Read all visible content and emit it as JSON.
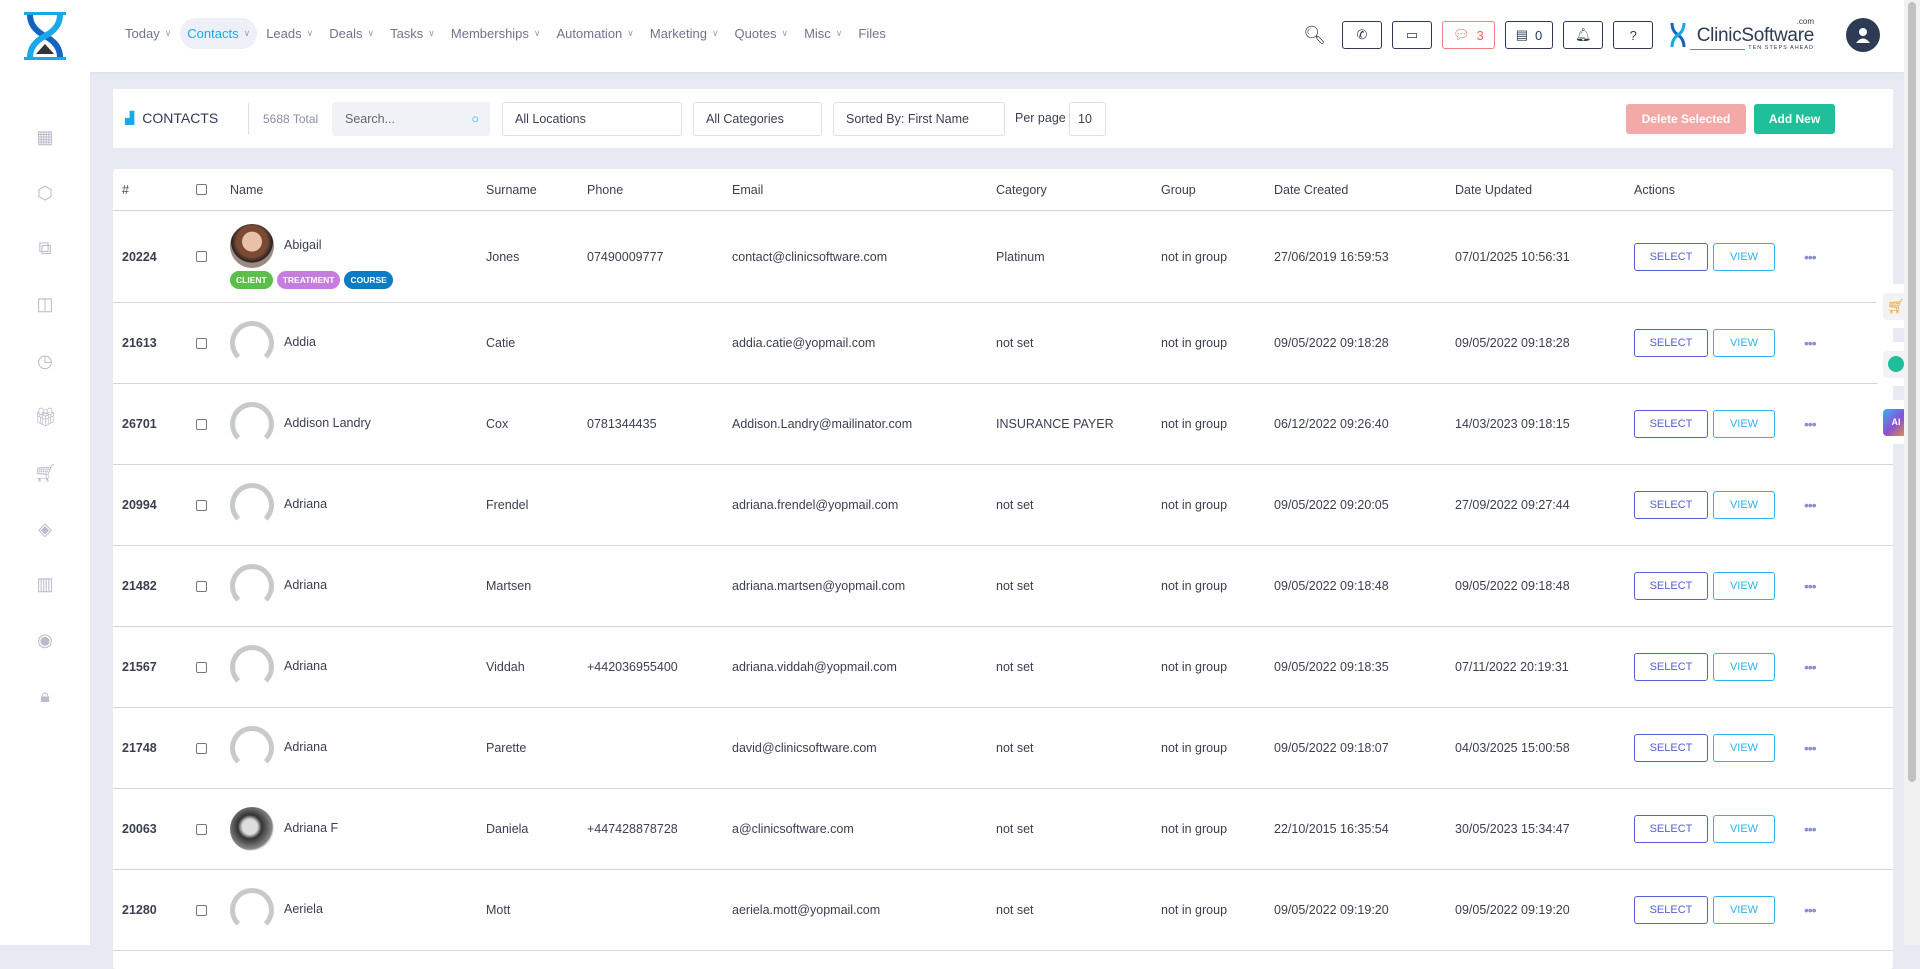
{
  "nav": [
    {
      "label": "Today"
    },
    {
      "label": "Contacts",
      "active": true
    },
    {
      "label": "Leads"
    },
    {
      "label": "Deals"
    },
    {
      "label": "Tasks"
    },
    {
      "label": "Memberships"
    },
    {
      "label": "Automation"
    },
    {
      "label": "Marketing"
    },
    {
      "label": "Quotes"
    },
    {
      "label": "Misc"
    },
    {
      "label": "Files",
      "nochev": true
    }
  ],
  "tools": {
    "chat_count": "3",
    "store_count": "0",
    "brand": "ClinicSoftware",
    "brand_suffix": ".com",
    "brand_tagline": "TEN STEPS AHEAD"
  },
  "toolbar": {
    "title": "CONTACTS",
    "total": "5688 Total",
    "search_placeholder": "Search...",
    "location": "All Locations",
    "category": "All Categories",
    "sort": "Sorted By: First Name",
    "per_page_label": "Per page",
    "per_page": "10",
    "delete_label": "Delete Selected",
    "add_label": "Add New"
  },
  "columns": [
    "#",
    "",
    "Name",
    "Surname",
    "Phone",
    "Email",
    "Category",
    "Group",
    "Date Created",
    "Date Updated",
    "Actions"
  ],
  "action_labels": {
    "select": "SELECT",
    "view": "VIEW",
    "more": "•••"
  },
  "tag_colors": {
    "CLIENT": "#5cbf4a",
    "TREATMENT": "#c77ddf",
    "COURSE": "#0a7cc4"
  },
  "rows": [
    {
      "id": "20224",
      "name": "Abigail",
      "avatar": "photo1",
      "tags": [
        "CLIENT",
        "TREATMENT",
        "COURSE"
      ],
      "surname": "Jones",
      "phone": "07490009777",
      "email": "contact@clinicsoftware.com",
      "category": "Platinum",
      "group": "not in group",
      "created": "27/06/2019 16:59:53",
      "updated": "07/01/2025 10:56:31"
    },
    {
      "id": "21613",
      "name": "Addia",
      "avatar": "placeholder",
      "tags": [],
      "surname": "Catie",
      "phone": "",
      "email": "addia.catie@yopmail.com",
      "category": "not set",
      "group": "not in group",
      "created": "09/05/2022 09:18:28",
      "updated": "09/05/2022 09:18:28"
    },
    {
      "id": "26701",
      "name": "Addison Landry",
      "avatar": "placeholder",
      "tags": [],
      "surname": "Cox",
      "phone": "0781344435",
      "email": "Addison.Landry@mailinator.com",
      "category": "INSURANCE PAYER",
      "group": "not in group",
      "created": "06/12/2022 09:26:40",
      "updated": "14/03/2023 09:18:15"
    },
    {
      "id": "20994",
      "name": "Adriana",
      "avatar": "placeholder",
      "tags": [],
      "surname": "Frendel",
      "phone": "",
      "email": "adriana.frendel@yopmail.com",
      "category": "not set",
      "group": "not in group",
      "created": "09/05/2022 09:20:05",
      "updated": "27/09/2022 09:27:44"
    },
    {
      "id": "21482",
      "name": "Adriana",
      "avatar": "placeholder",
      "tags": [],
      "surname": "Martsen",
      "phone": "",
      "email": "adriana.martsen@yopmail.com",
      "category": "not set",
      "group": "not in group",
      "created": "09/05/2022 09:18:48",
      "updated": "09/05/2022 09:18:48"
    },
    {
      "id": "21567",
      "name": "Adriana",
      "avatar": "placeholder",
      "tags": [],
      "surname": "Viddah",
      "phone": "+442036955400",
      "email": "adriana.viddah@yopmail.com",
      "category": "not set",
      "group": "not in group",
      "created": "09/05/2022 09:18:35",
      "updated": "07/11/2022 20:19:31"
    },
    {
      "id": "21748",
      "name": "Adriana",
      "avatar": "placeholder",
      "tags": [],
      "surname": "Parette",
      "phone": "",
      "email": "david@clinicsoftware.com",
      "category": "not set",
      "group": "not in group",
      "created": "09/05/2022 09:18:07",
      "updated": "04/03/2025 15:00:58"
    },
    {
      "id": "20063",
      "name": "Adriana F",
      "avatar": "photo2",
      "tags": [],
      "surname": "Daniela",
      "phone": "+447428878728",
      "email": "a@clinicsoftware.com",
      "category": "not set",
      "group": "not in group",
      "created": "22/10/2015 16:35:54",
      "updated": "30/05/2023 15:34:47"
    },
    {
      "id": "21280",
      "name": "Aeriela",
      "avatar": "placeholder",
      "tags": [],
      "surname": "Mott",
      "phone": "",
      "email": "aeriela.mott@yopmail.com",
      "category": "not set",
      "group": "not in group",
      "created": "09/05/2022 09:19:20",
      "updated": "09/05/2022 09:19:20"
    }
  ]
}
